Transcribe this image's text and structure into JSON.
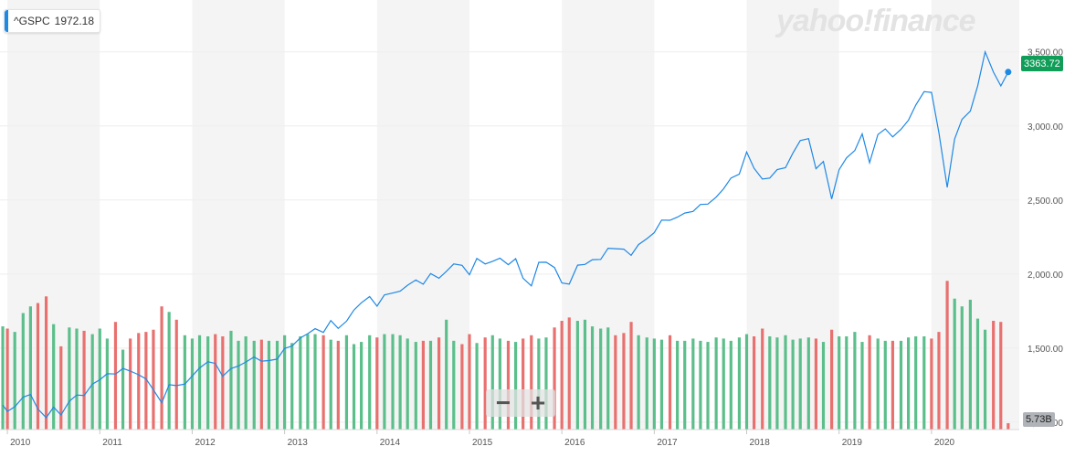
{
  "legend": {
    "symbol": "^GSPC",
    "value": "1972.18",
    "color": "#1e88e5"
  },
  "brand": {
    "text": "yahoo!finance",
    "color": "#e3e3e3"
  },
  "zoom": {
    "minus": "−",
    "plus": "+"
  },
  "last_price_label": "3363.72",
  "volume_badge": "5.73B",
  "colors": {
    "line": "#1e88e5",
    "vol_up": "#5cbf8b",
    "vol_down": "#e8716f",
    "band": "#f4f4f4",
    "grid": "#eeeeee"
  },
  "chart_data": {
    "type": "line",
    "x_tick_labels": [
      "2010",
      "2011",
      "2012",
      "2013",
      "2014",
      "2015",
      "2016",
      "2017",
      "2018",
      "2019",
      "2020"
    ],
    "y_tick_labels": [
      "1,000.00",
      "1,500.00",
      "2,000.00",
      "2,500.00",
      "3,000.00",
      "3,500.00"
    ],
    "y_ticks": [
      1000,
      1500,
      2000,
      2500,
      3000,
      3500
    ],
    "ylim": [
      950,
      3850
    ],
    "xlim": [
      2009.92,
      2020.95
    ],
    "series": [
      {
        "type": "line",
        "x": [
          2009.95,
          2010.0,
          2010.08,
          2010.17,
          2010.25,
          2010.33,
          2010.42,
          2010.5,
          2010.58,
          2010.67,
          2010.75,
          2010.83,
          2010.92,
          2011.0,
          2011.08,
          2011.17,
          2011.25,
          2011.33,
          2011.42,
          2011.5,
          2011.58,
          2011.67,
          2011.75,
          2011.83,
          2011.92,
          2012.0,
          2012.08,
          2012.17,
          2012.25,
          2012.33,
          2012.42,
          2012.5,
          2012.58,
          2012.67,
          2012.75,
          2012.83,
          2012.92,
          2013.0,
          2013.08,
          2013.17,
          2013.25,
          2013.33,
          2013.42,
          2013.5,
          2013.58,
          2013.67,
          2013.75,
          2013.83,
          2013.92,
          2014.0,
          2014.08,
          2014.17,
          2014.25,
          2014.33,
          2014.42,
          2014.5,
          2014.58,
          2014.67,
          2014.75,
          2014.83,
          2014.92,
          2015.0,
          2015.08,
          2015.17,
          2015.25,
          2015.33,
          2015.42,
          2015.5,
          2015.58,
          2015.67,
          2015.75,
          2015.83,
          2015.92,
          2016.0,
          2016.08,
          2016.17,
          2016.25,
          2016.33,
          2016.42,
          2016.5,
          2016.58,
          2016.67,
          2016.75,
          2016.83,
          2016.92,
          2017.0,
          2017.08,
          2017.17,
          2017.25,
          2017.33,
          2017.42,
          2017.5,
          2017.58,
          2017.67,
          2017.75,
          2017.83,
          2017.92,
          2018.0,
          2018.08,
          2018.17,
          2018.25,
          2018.33,
          2018.42,
          2018.5,
          2018.58,
          2018.67,
          2018.75,
          2018.83,
          2018.92,
          2019.0,
          2019.08,
          2019.17,
          2019.25,
          2019.33,
          2019.42,
          2019.5,
          2019.58,
          2019.67,
          2019.75,
          2019.83,
          2019.92,
          2020.0,
          2020.08,
          2020.17,
          2020.25,
          2020.33,
          2020.42,
          2020.5,
          2020.58,
          2020.67,
          2020.75,
          2020.83
        ],
        "y": [
          1116,
          1073,
          1104,
          1169,
          1187,
          1089,
          1031,
          1101,
          1049,
          1141,
          1183,
          1180,
          1257,
          1286,
          1327,
          1325,
          1363,
          1345,
          1320,
          1292,
          1218,
          1131,
          1253,
          1247,
          1257,
          1312,
          1366,
          1408,
          1397,
          1310,
          1362,
          1379,
          1406,
          1440,
          1412,
          1416,
          1426,
          1498,
          1514,
          1569,
          1597,
          1631,
          1606,
          1686,
          1633,
          1682,
          1757,
          1806,
          1848,
          1783,
          1859,
          1872,
          1884,
          1924,
          1960,
          1931,
          2003,
          1972,
          2018,
          2068,
          2059,
          1995,
          2105,
          2068,
          2086,
          2107,
          2063,
          2104,
          1972,
          1920,
          2079,
          2080,
          2044,
          1940,
          1932,
          2060,
          2065,
          2097,
          2099,
          2174,
          2171,
          2168,
          2126,
          2199,
          2239,
          2279,
          2364,
          2363,
          2384,
          2412,
          2423,
          2470,
          2472,
          2519,
          2575,
          2648,
          2674,
          2824,
          2714,
          2641,
          2648,
          2705,
          2718,
          2816,
          2901,
          2914,
          2711,
          2760,
          2507,
          2704,
          2784,
          2834,
          2946,
          2752,
          2942,
          2980,
          2926,
          2977,
          3038,
          3141,
          3231,
          3226,
          2954,
          2585,
          2912,
          3044,
          3100,
          3271,
          3500,
          3363,
          3270,
          3363.72
        ],
        "last": 3363.72
      },
      {
        "type": "volume-bar",
        "note_values_in_billions": true,
        "x": [
          2009.95,
          2010.0,
          2010.08,
          2010.17,
          2010.25,
          2010.33,
          2010.42,
          2010.5,
          2010.58,
          2010.67,
          2010.75,
          2010.83,
          2010.92,
          2011.0,
          2011.08,
          2011.17,
          2011.25,
          2011.33,
          2011.42,
          2011.5,
          2011.58,
          2011.67,
          2011.75,
          2011.83,
          2011.92,
          2012.0,
          2012.08,
          2012.17,
          2012.25,
          2012.33,
          2012.42,
          2012.5,
          2012.58,
          2012.67,
          2012.75,
          2012.83,
          2012.92,
          2013.0,
          2013.08,
          2013.17,
          2013.25,
          2013.33,
          2013.42,
          2013.5,
          2013.58,
          2013.67,
          2013.75,
          2013.83,
          2013.92,
          2014.0,
          2014.08,
          2014.17,
          2014.25,
          2014.33,
          2014.42,
          2014.5,
          2014.58,
          2014.67,
          2014.75,
          2014.83,
          2014.92,
          2015.0,
          2015.08,
          2015.17,
          2015.25,
          2015.33,
          2015.42,
          2015.5,
          2015.58,
          2015.67,
          2015.75,
          2015.83,
          2015.92,
          2016.0,
          2016.08,
          2016.17,
          2016.25,
          2016.33,
          2016.42,
          2016.5,
          2016.58,
          2016.67,
          2016.75,
          2016.83,
          2016.92,
          2017.0,
          2017.08,
          2017.17,
          2017.25,
          2017.33,
          2017.42,
          2017.5,
          2017.58,
          2017.67,
          2017.75,
          2017.83,
          2017.92,
          2018.0,
          2018.08,
          2018.17,
          2018.25,
          2018.33,
          2018.42,
          2018.5,
          2018.58,
          2018.67,
          2018.75,
          2018.83,
          2018.92,
          2019.0,
          2019.08,
          2019.17,
          2019.25,
          2019.33,
          2019.42,
          2019.5,
          2019.58,
          2019.67,
          2019.75,
          2019.83,
          2019.92,
          2020.0,
          2020.08,
          2020.17,
          2020.25,
          2020.33,
          2020.42,
          2020.5,
          2020.58,
          2020.67,
          2020.75,
          2020.83
        ],
        "values": [
          93,
          91,
          88,
          105,
          111,
          114,
          120,
          95,
          75,
          92,
          91,
          89,
          86,
          91,
          82,
          97,
          72,
          82,
          87,
          88,
          90,
          111,
          106,
          99,
          85,
          82,
          85,
          84,
          86,
          84,
          89,
          80,
          84,
          80,
          81,
          80,
          80,
          85,
          78,
          84,
          86,
          86,
          85,
          81,
          80,
          85,
          77,
          79,
          85,
          83,
          86,
          86,
          85,
          82,
          79,
          80,
          80,
          83,
          99,
          80,
          77,
          86,
          78,
          83,
          85,
          82,
          80,
          79,
          82,
          85,
          82,
          83,
          92,
          98,
          101,
          98,
          99,
          93,
          91,
          92,
          85,
          87,
          97,
          85,
          83,
          82,
          81,
          85,
          80,
          80,
          82,
          80,
          79,
          83,
          82,
          80,
          83,
          86,
          84,
          91,
          84,
          83,
          85,
          81,
          82,
          83,
          82,
          79,
          90,
          84,
          84,
          88,
          79,
          85,
          82,
          80,
          80,
          80,
          83,
          84,
          84,
          82,
          88,
          134,
          118,
          111,
          117,
          100,
          90,
          98,
          97,
          5.73
        ],
        "up": [
          1,
          0,
          1,
          1,
          1,
          0,
          0,
          1,
          0,
          1,
          1,
          0,
          1,
          1,
          1,
          0,
          1,
          0,
          0,
          0,
          0,
          0,
          1,
          0,
          1,
          1,
          1,
          1,
          0,
          0,
          1,
          1,
          1,
          1,
          0,
          1,
          1,
          1,
          1,
          1,
          1,
          1,
          0,
          1,
          0,
          1,
          1,
          1,
          1,
          0,
          1,
          1,
          1,
          1,
          1,
          0,
          1,
          0,
          1,
          1,
          0,
          0,
          1,
          0,
          1,
          1,
          0,
          1,
          0,
          0,
          1,
          1,
          0,
          0,
          0,
          1,
          1,
          1,
          1,
          1,
          0,
          0,
          0,
          1,
          1,
          1,
          1,
          0,
          1,
          1,
          1,
          1,
          1,
          1,
          1,
          1,
          1,
          1,
          0,
          0,
          1,
          1,
          1,
          1,
          1,
          1,
          0,
          1,
          0,
          1,
          1,
          1,
          1,
          0,
          1,
          1,
          0,
          1,
          1,
          1,
          1,
          0,
          0,
          0,
          1,
          1,
          1,
          1,
          1,
          0,
          0,
          0,
          1
        ]
      }
    ]
  }
}
